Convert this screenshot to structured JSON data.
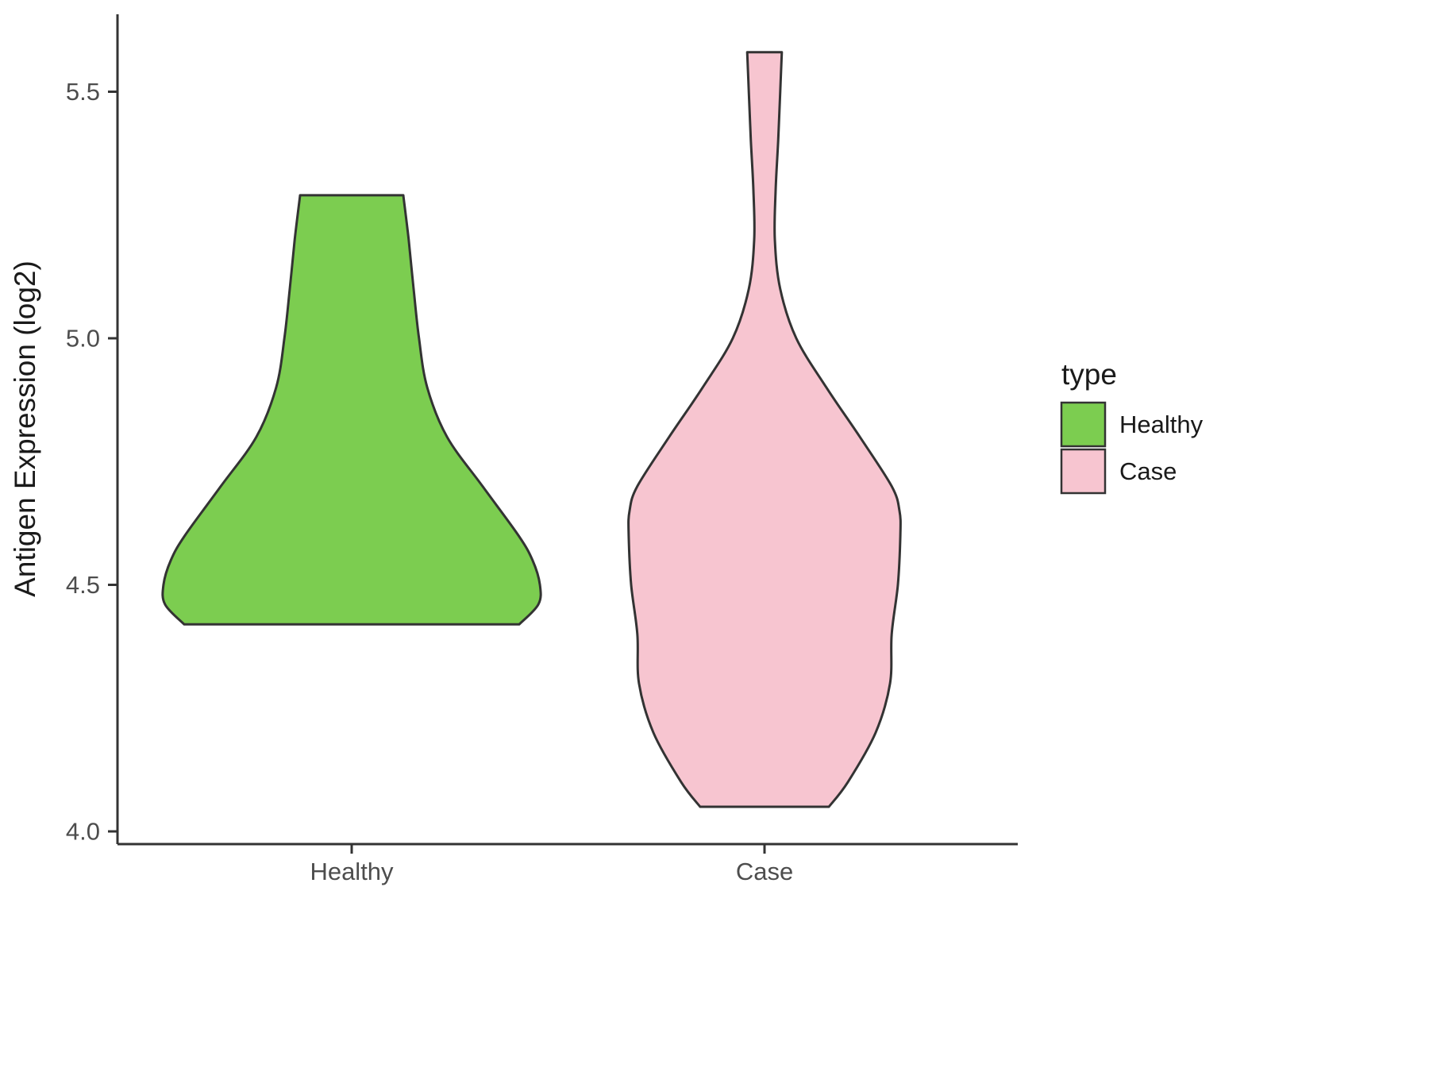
{
  "chart_data": {
    "type": "violin",
    "title": "",
    "xlabel": "",
    "ylabel": "Antigen Expression (log2)",
    "categories": [
      "Healthy",
      "Case"
    ],
    "yticks": [
      4.0,
      4.5,
      5.0,
      5.5
    ],
    "ytick_labels": [
      "4.0",
      "4.5",
      "5.0",
      "5.5"
    ],
    "ylim": [
      3.95,
      5.67
    ],
    "grid": "off",
    "style": {
      "axis_color": "#333333",
      "tick_label_color": "#4D4D4D",
      "outline_color": "#333333",
      "background": "#FFFFFF"
    },
    "legend": {
      "title": "type",
      "position": "right",
      "entries": [
        {
          "label": "Healthy",
          "fill": "#7CCD50"
        },
        {
          "label": "Case",
          "fill": "#F7C5D0"
        }
      ]
    },
    "series": [
      {
        "name": "Healthy",
        "center": 0,
        "fill": "#7CCD50",
        "stroke": "#333333",
        "value_range": [
          4.42,
          5.29
        ],
        "profile": [
          [
            5.29,
            0.125
          ],
          [
            5.2,
            0.138
          ],
          [
            5.1,
            0.15
          ],
          [
            5.0,
            0.163
          ],
          [
            4.9,
            0.183
          ],
          [
            4.8,
            0.231
          ],
          [
            4.7,
            0.317
          ],
          [
            4.6,
            0.404
          ],
          [
            4.55,
            0.438
          ],
          [
            4.5,
            0.456
          ],
          [
            4.46,
            0.452
          ],
          [
            4.42,
            0.406
          ]
        ]
      },
      {
        "name": "Case",
        "center": 1,
        "fill": "#F7C5D0",
        "stroke": "#333333",
        "value_range": [
          4.05,
          5.58
        ],
        "profile": [
          [
            5.58,
            0.042
          ],
          [
            5.5,
            0.038
          ],
          [
            5.4,
            0.033
          ],
          [
            5.3,
            0.027
          ],
          [
            5.2,
            0.025
          ],
          [
            5.1,
            0.038
          ],
          [
            5.0,
            0.077
          ],
          [
            4.9,
            0.15
          ],
          [
            4.8,
            0.231
          ],
          [
            4.7,
            0.308
          ],
          [
            4.65,
            0.327
          ],
          [
            4.6,
            0.329
          ],
          [
            4.5,
            0.323
          ],
          [
            4.4,
            0.308
          ],
          [
            4.3,
            0.304
          ],
          [
            4.2,
            0.269
          ],
          [
            4.1,
            0.202
          ],
          [
            4.05,
            0.156
          ]
        ]
      }
    ]
  }
}
